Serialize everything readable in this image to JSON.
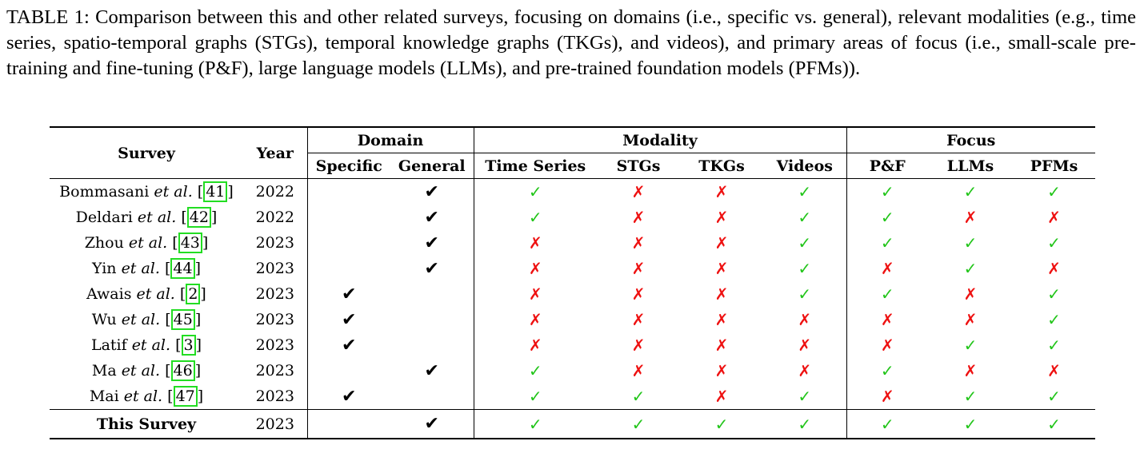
{
  "caption": "TABLE 1: Comparison between this and other related surveys, focusing on domains (i.e., specific vs. general), relevant modalities (e.g., time series, spatio-temporal graphs (STGs), temporal knowledge graphs (TKGs), and videos), and primary areas of focus (i.e., small-scale pre-training and fine-tuning (P&F), large language models (LLMs), and pre-trained foundation models (PFMs)).",
  "headers": {
    "survey": "Survey",
    "year": "Year",
    "domain": "Domain",
    "modality": "Modality",
    "focus": "Focus",
    "specific": "Specific",
    "general": "General",
    "time_series": "Time Series",
    "stgs": "STGs",
    "tkgs": "TKGs",
    "videos": "Videos",
    "pf": "P&F",
    "llms": "LLMs",
    "pfms": "PFMs"
  },
  "symbols": {
    "check_black": "✔",
    "check_green": "✓",
    "cross": "✗"
  },
  "rows": [
    {
      "author": "Bommasani",
      "etal": "et al.",
      "ref": "41",
      "year": "2022",
      "domain": "general",
      "ts": true,
      "stg": false,
      "tkg": false,
      "vid": true,
      "pf": true,
      "llm": true,
      "pfm": true
    },
    {
      "author": "Deldari",
      "etal": "et al.",
      "ref": "42",
      "year": "2022",
      "domain": "general",
      "ts": true,
      "stg": false,
      "tkg": false,
      "vid": true,
      "pf": true,
      "llm": false,
      "pfm": false
    },
    {
      "author": "Zhou",
      "etal": "et al.",
      "ref": "43",
      "year": "2023",
      "domain": "general",
      "ts": false,
      "stg": false,
      "tkg": false,
      "vid": true,
      "pf": true,
      "llm": true,
      "pfm": true
    },
    {
      "author": "Yin",
      "etal": "et al.",
      "ref": "44",
      "year": "2023",
      "domain": "general",
      "ts": false,
      "stg": false,
      "tkg": false,
      "vid": true,
      "pf": false,
      "llm": true,
      "pfm": false
    },
    {
      "author": "Awais",
      "etal": "et al.",
      "ref": "2",
      "year": "2023",
      "domain": "specific",
      "ts": false,
      "stg": false,
      "tkg": false,
      "vid": true,
      "pf": true,
      "llm": false,
      "pfm": true
    },
    {
      "author": "Wu",
      "etal": "et al.",
      "ref": "45",
      "year": "2023",
      "domain": "specific",
      "ts": false,
      "stg": false,
      "tkg": false,
      "vid": false,
      "pf": false,
      "llm": false,
      "pfm": true
    },
    {
      "author": "Latif",
      "etal": "et al.",
      "ref": "3",
      "year": "2023",
      "domain": "specific",
      "ts": false,
      "stg": false,
      "tkg": false,
      "vid": false,
      "pf": false,
      "llm": true,
      "pfm": true
    },
    {
      "author": "Ma",
      "etal": "et al.",
      "ref": "46",
      "year": "2023",
      "domain": "general",
      "ts": true,
      "stg": false,
      "tkg": false,
      "vid": false,
      "pf": true,
      "llm": false,
      "pfm": false
    },
    {
      "author": "Mai",
      "etal": "et al.",
      "ref": "47",
      "year": "2023",
      "domain": "specific",
      "ts": true,
      "stg": true,
      "tkg": false,
      "vid": true,
      "pf": false,
      "llm": true,
      "pfm": true
    }
  ],
  "final_row": {
    "label": "This Survey",
    "year": "2023",
    "domain": "general",
    "ts": true,
    "stg": true,
    "tkg": true,
    "vid": true,
    "pf": true,
    "llm": true,
    "pfm": true
  }
}
